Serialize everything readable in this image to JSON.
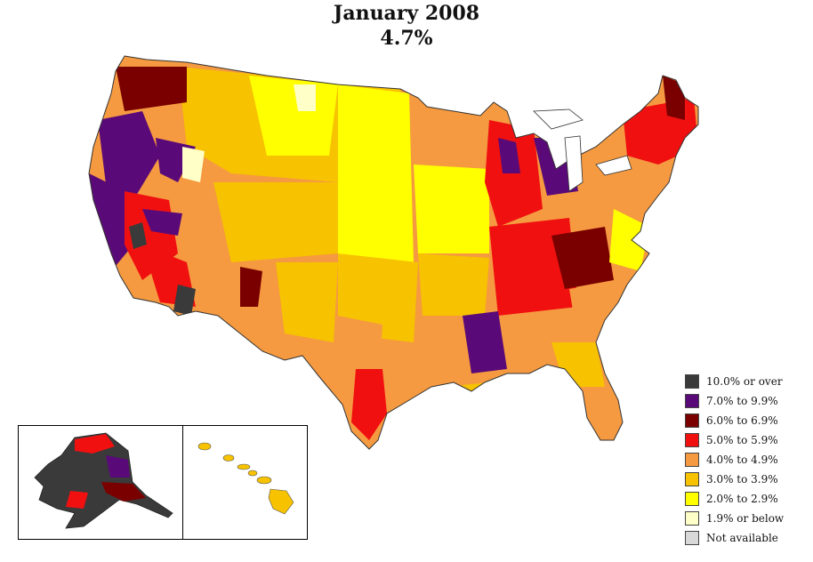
{
  "title": "January 2008",
  "subtitle": "4.7%",
  "legend": [
    {
      "label": "10.0% or over",
      "color": "#3a3a3a"
    },
    {
      "label": "7.0% to 9.9%",
      "color": "#5a0a78"
    },
    {
      "label": "6.0% to 6.9%",
      "color": "#7a0000"
    },
    {
      "label": "5.0% to 5.9%",
      "color": "#f01010"
    },
    {
      "label": "4.0% to 4.9%",
      "color": "#f59a40"
    },
    {
      "label": "3.0% to 3.9%",
      "color": "#f7c200"
    },
    {
      "label": "2.0% to 2.9%",
      "color": "#ffff00"
    },
    {
      "label": "1.9% or below",
      "color": "#ffffc8"
    },
    {
      "label": "Not available",
      "color": "#d8d8d8"
    }
  ]
}
